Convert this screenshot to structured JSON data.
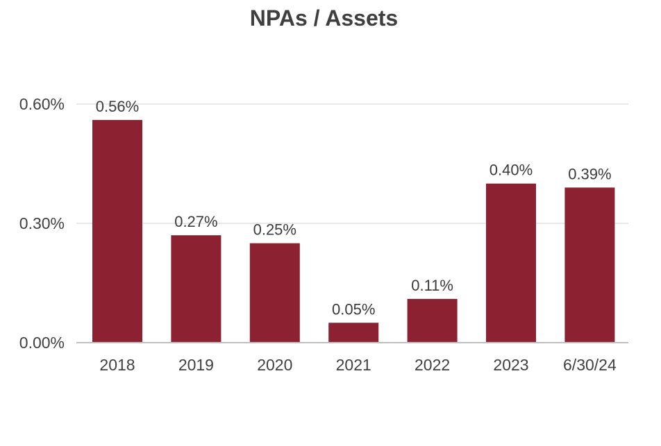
{
  "chart_data": {
    "type": "bar",
    "title": "NPAs / Assets",
    "categories": [
      "2018",
      "2019",
      "2020",
      "2021",
      "2022",
      "2023",
      "6/30/24"
    ],
    "values": [
      0.56,
      0.27,
      0.25,
      0.05,
      0.11,
      0.4,
      0.39
    ],
    "data_labels": [
      "0.56%",
      "0.27%",
      "0.25%",
      "0.05%",
      "0.11%",
      "0.40%",
      "0.39%"
    ],
    "y_ticks": [
      0,
      0.3,
      0.6
    ],
    "y_tick_labels": [
      "0.00%",
      "0.30%",
      "0.60%"
    ],
    "ylim": [
      0,
      0.6
    ],
    "xlabel": "",
    "ylabel": "",
    "grid": true,
    "legend": "none",
    "colors": {
      "bar": "#8b2131",
      "grid": "#d9d9d9",
      "axis": "#bfbfbf"
    }
  }
}
